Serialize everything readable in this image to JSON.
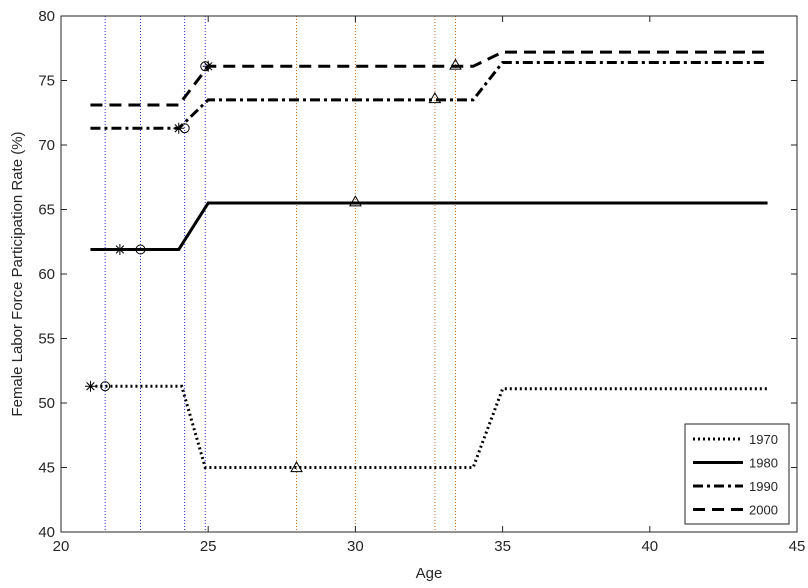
{
  "chart_data": {
    "type": "line",
    "xlabel": "Age",
    "ylabel": "Female Labor Force Participation Rate (%)",
    "xlim": [
      20,
      45
    ],
    "ylim": [
      40,
      80
    ],
    "xticks": [
      20,
      25,
      30,
      35,
      40,
      45
    ],
    "yticks": [
      40,
      45,
      50,
      55,
      60,
      65,
      70,
      75,
      80
    ],
    "xtick_labels": [
      "20",
      "25",
      "30",
      "35",
      "40",
      "45"
    ],
    "ytick_labels": [
      "40",
      "45",
      "50",
      "55",
      "60",
      "65",
      "70",
      "75",
      "80"
    ],
    "grid": false,
    "legend_position": "bottom-right",
    "colors": {
      "series": "#000000",
      "vline_blue": "#2a2ae0",
      "vline_red": "#d2691e",
      "axes": "#262626"
    },
    "series": [
      {
        "name": "1970",
        "style": "dotted",
        "x": [
          21,
          24.1,
          24.9,
          34.0,
          35.0,
          44
        ],
        "y": [
          51.3,
          51.3,
          45.0,
          45.0,
          51.1,
          51.1
        ],
        "markers": [
          {
            "shape": "asterisk",
            "x": 21.0,
            "y": 51.3
          },
          {
            "shape": "circle",
            "x": 21.5,
            "y": 51.3
          },
          {
            "shape": "triangle",
            "x": 28.0,
            "y": 45.0
          }
        ]
      },
      {
        "name": "1980",
        "style": "solid",
        "x": [
          21,
          24.0,
          25.0,
          44
        ],
        "y": [
          61.9,
          61.9,
          65.5,
          65.5
        ],
        "markers": [
          {
            "shape": "asterisk",
            "x": 22.0,
            "y": 61.9
          },
          {
            "shape": "circle",
            "x": 22.7,
            "y": 61.9
          },
          {
            "shape": "triangle",
            "x": 30.0,
            "y": 65.6
          }
        ]
      },
      {
        "name": "1990",
        "style": "dashdot",
        "x": [
          21,
          24.0,
          25.0,
          34.0,
          35.0,
          44
        ],
        "y": [
          71.3,
          71.3,
          73.5,
          73.5,
          76.4,
          76.4
        ],
        "markers": [
          {
            "shape": "asterisk",
            "x": 24.0,
            "y": 71.3
          },
          {
            "shape": "circle",
            "x": 24.2,
            "y": 71.3
          },
          {
            "shape": "triangle",
            "x": 32.7,
            "y": 73.6
          }
        ]
      },
      {
        "name": "2000",
        "style": "dashed",
        "x": [
          21,
          24.0,
          25.0,
          34.0,
          35.0,
          44
        ],
        "y": [
          73.1,
          73.1,
          76.1,
          76.1,
          77.2,
          77.2
        ],
        "markers": [
          {
            "shape": "asterisk",
            "x": 25.0,
            "y": 76.1
          },
          {
            "shape": "circle",
            "x": 24.9,
            "y": 76.1
          },
          {
            "shape": "triangle",
            "x": 33.4,
            "y": 76.2
          }
        ]
      }
    ],
    "vertical_lines": [
      {
        "x": 21.5,
        "color": "blue"
      },
      {
        "x": 22.7,
        "color": "blue"
      },
      {
        "x": 24.2,
        "color": "blue"
      },
      {
        "x": 24.9,
        "color": "blue"
      },
      {
        "x": 28.0,
        "color": "red"
      },
      {
        "x": 30.0,
        "color": "red"
      },
      {
        "x": 32.7,
        "color": "red"
      },
      {
        "x": 33.4,
        "color": "red"
      }
    ]
  }
}
